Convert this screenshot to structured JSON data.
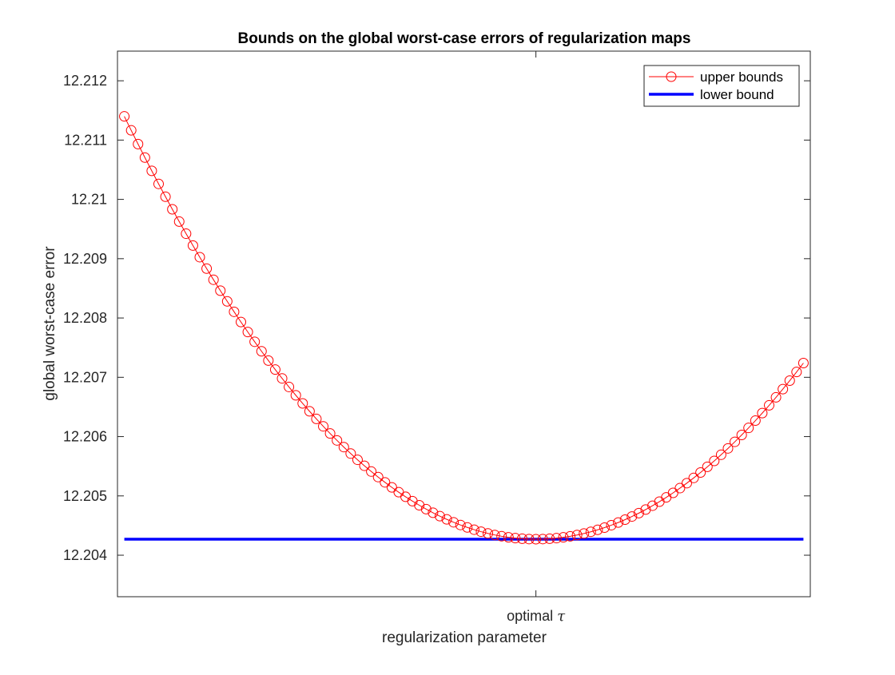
{
  "chart_data": {
    "type": "line",
    "title": "Bounds on the global worst-case errors of regularization maps",
    "xlabel": "regularization parameter",
    "ylabel": "global worst-case error",
    "x_tick_labels": [
      {
        "x": 61,
        "label": "optimal",
        "math_symbol": "τ"
      }
    ],
    "xlim": [
      0,
      101
    ],
    "ylim": [
      12.2033,
      12.2125
    ],
    "y_ticks": [
      12.204,
      12.205,
      12.206,
      12.207,
      12.208,
      12.209,
      12.21,
      12.211,
      12.212
    ],
    "y_tick_labels": [
      "12.204",
      "12.205",
      "12.206",
      "12.207",
      "12.208",
      "12.209",
      "12.21",
      "12.211",
      "12.212"
    ],
    "grid": false,
    "legend_position": "top-right",
    "series": [
      {
        "name": "upper bounds",
        "color": "#ff0000",
        "marker": "circle",
        "line_width": 0.5,
        "x_range": [
          1,
          100
        ],
        "model": "quadratic",
        "vertex_x": 61,
        "y_at_vertex": 12.20427,
        "y_at_start": 12.2114,
        "y_at_end": 12.20724
      },
      {
        "name": "lower bound",
        "color": "#0000ff",
        "marker": "none",
        "line_width": 2,
        "x": [
          1,
          100
        ],
        "values": [
          12.20427,
          12.20427
        ]
      }
    ]
  }
}
